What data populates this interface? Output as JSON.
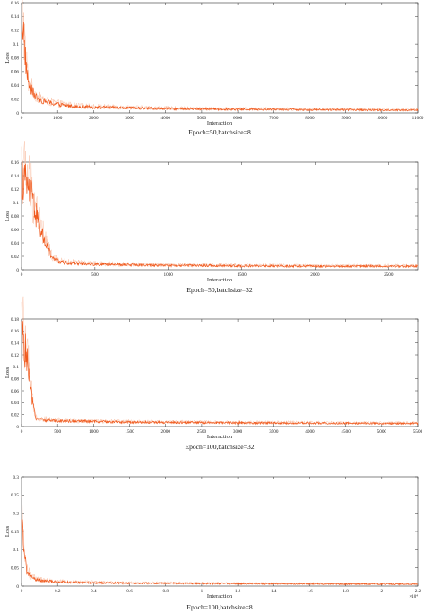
{
  "chart_data": [
    {
      "type": "line",
      "title": "Epoch=50,batchsize=8",
      "xlabel": "Interaction",
      "ylabel": "Loss",
      "xlim": [
        0,
        11000
      ],
      "ylim": [
        0,
        0.16
      ],
      "xticks": [
        1000,
        2000,
        3000,
        4000,
        5000,
        6000,
        7000,
        8000,
        9000,
        10000,
        11000
      ],
      "yticks": [
        0,
        0.02,
        0.04,
        0.06,
        0.08,
        0.1,
        0.12,
        0.14,
        0.16
      ],
      "x_multiplier": "",
      "series": [
        {
          "color": "#F05A1E",
          "x": [
            0,
            50,
            120,
            200,
            300,
            450,
            600,
            800,
            1000,
            1500,
            2000,
            3000,
            4000,
            5000,
            6000,
            7000,
            8000,
            9000,
            10000,
            11000
          ],
          "y": [
            0.13,
            0.12,
            0.07,
            0.04,
            0.03,
            0.02,
            0.017,
            0.014,
            0.012,
            0.009,
            0.008,
            0.007,
            0.006,
            0.0055,
            0.005,
            0.005,
            0.0045,
            0.0045,
            0.004,
            0.004
          ]
        }
      ]
    },
    {
      "type": "line",
      "title": "Epoch=50,batchsize=32",
      "xlabel": "Interaction",
      "ylabel": "Loss",
      "xlim": [
        0,
        2700
      ],
      "ylim": [
        0,
        0.16
      ],
      "xticks": [
        500,
        1000,
        1500,
        2000,
        2500
      ],
      "yticks": [
        0,
        0.02,
        0.04,
        0.06,
        0.08,
        0.1,
        0.12,
        0.14,
        0.16
      ],
      "x_multiplier": "",
      "series": [
        {
          "color": "#F05A1E",
          "x": [
            0,
            30,
            60,
            100,
            150,
            200,
            250,
            300,
            400,
            500,
            700,
            900,
            1200,
            1500,
            2000,
            2500,
            2700
          ],
          "y": [
            0.135,
            0.125,
            0.11,
            0.08,
            0.045,
            0.02,
            0.012,
            0.01,
            0.009,
            0.008,
            0.007,
            0.0065,
            0.006,
            0.0055,
            0.005,
            0.005,
            0.005
          ]
        }
      ]
    },
    {
      "type": "line",
      "title": "Epoch=100,batchsize=32",
      "xlabel": "Interaction",
      "ylabel": "Loss",
      "xlim": [
        0,
        5500
      ],
      "ylim": [
        0,
        0.18
      ],
      "xticks": [
        500,
        1000,
        1500,
        2000,
        2500,
        3000,
        3500,
        4000,
        4500,
        5000,
        5500
      ],
      "yticks": [
        0,
        0.02,
        0.04,
        0.06,
        0.08,
        0.1,
        0.12,
        0.14,
        0.16,
        0.18
      ],
      "x_multiplier": "",
      "series": [
        {
          "color": "#F05A1E",
          "x": [
            0,
            30,
            60,
            100,
            150,
            200,
            250,
            300,
            400,
            600,
            1000,
            1500,
            2000,
            3000,
            4000,
            5000,
            5500
          ],
          "y": [
            0.15,
            0.14,
            0.12,
            0.085,
            0.04,
            0.015,
            0.012,
            0.011,
            0.01,
            0.009,
            0.008,
            0.007,
            0.0065,
            0.006,
            0.0055,
            0.005,
            0.005
          ]
        }
      ]
    },
    {
      "type": "line",
      "title": "Epoch=100,batchsize=8",
      "xlabel": "Interaction",
      "ylabel": "Loss",
      "xlim": [
        0,
        2.2
      ],
      "ylim": [
        0,
        0.3
      ],
      "xticks": [
        0.2,
        0.4,
        0.6,
        0.8,
        1,
        1.2,
        1.4,
        1.6,
        1.8,
        2,
        2.2
      ],
      "yticks": [
        0,
        0.05,
        0.1,
        0.15,
        0.2,
        0.25,
        0.3
      ],
      "x_multiplier": "×10⁴",
      "series": [
        {
          "color": "#F05A1E",
          "x": [
            0,
            0.01,
            0.02,
            0.03,
            0.05,
            0.08,
            0.12,
            0.2,
            0.4,
            0.6,
            0.8,
            1.0,
            1.2,
            1.4,
            1.6,
            1.8,
            2.0,
            2.2
          ],
          "y": [
            0.17,
            0.13,
            0.07,
            0.04,
            0.025,
            0.018,
            0.014,
            0.011,
            0.009,
            0.008,
            0.0075,
            0.007,
            0.0065,
            0.006,
            0.006,
            0.0055,
            0.0055,
            0.005
          ]
        }
      ]
    }
  ]
}
